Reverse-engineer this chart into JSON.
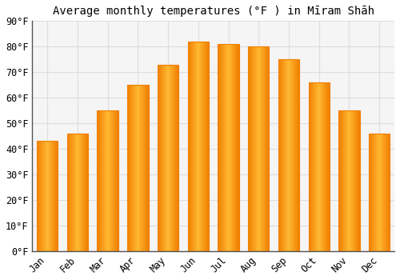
{
  "title": "Average monthly temperatures (°F ) in Mīram Shāh",
  "months": [
    "Jan",
    "Feb",
    "Mar",
    "Apr",
    "May",
    "Jun",
    "Jul",
    "Aug",
    "Sep",
    "Oct",
    "Nov",
    "Dec"
  ],
  "values": [
    43,
    46,
    55,
    65,
    73,
    82,
    81,
    80,
    75,
    66,
    55,
    46
  ],
  "bar_color_center": "#FFB833",
  "bar_color_edge": "#F08000",
  "background_color": "#FFFFFF",
  "plot_bg_color": "#F5F5F5",
  "grid_color": "#DDDDDD",
  "ylim": [
    0,
    90
  ],
  "yticks": [
    0,
    10,
    20,
    30,
    40,
    50,
    60,
    70,
    80,
    90
  ],
  "title_fontsize": 10,
  "tick_fontsize": 8.5,
  "bar_width": 0.7
}
